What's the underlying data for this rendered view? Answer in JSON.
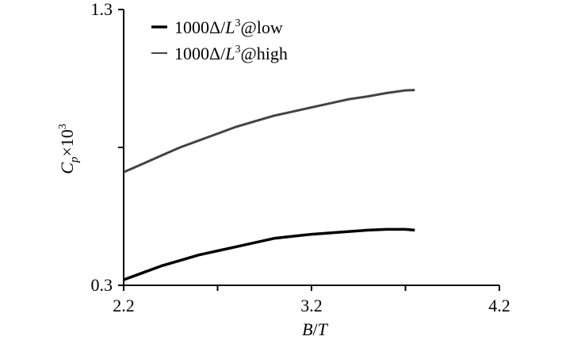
{
  "chart_data": {
    "type": "line",
    "xlabel": {
      "main": "B",
      "slash": "/",
      "italic2": "T"
    },
    "ylabel": {
      "c": "C",
      "sub": "p",
      "times": "×10",
      "sup": "3"
    },
    "xlim": [
      2.2,
      4.2
    ],
    "ylim": [
      0.3,
      1.3
    ],
    "x_tick_labels": [
      "2.2",
      "3.2",
      "4.2"
    ],
    "y_tick_labels": [
      "0.3",
      "1.3"
    ],
    "x_minor_ticks": [
      2.7,
      3.7
    ],
    "y_minor_ticks": [
      0.8
    ],
    "grid": false,
    "legend_position": "top-left",
    "series": [
      {
        "name": "1000Δ/L³@low",
        "legend": {
          "pre": "1000Δ/",
          "italic": "L",
          "sup": "3",
          "post": "@low"
        },
        "color": "#000000",
        "x": [
          2.2,
          2.3,
          2.4,
          2.5,
          2.6,
          2.7,
          2.8,
          2.9,
          3.0,
          3.1,
          3.2,
          3.3,
          3.4,
          3.5,
          3.6,
          3.7,
          3.75
        ],
        "y": [
          0.32,
          0.345,
          0.37,
          0.39,
          0.41,
          0.425,
          0.44,
          0.455,
          0.47,
          0.478,
          0.485,
          0.49,
          0.495,
          0.5,
          0.503,
          0.503,
          0.5
        ]
      },
      {
        "name": "1000Δ/L³@high",
        "legend": {
          "pre": "1000Δ/",
          "italic": "L",
          "sup": "3",
          "post": "@high"
        },
        "color": "#444444",
        "x": [
          2.2,
          2.3,
          2.4,
          2.5,
          2.6,
          2.7,
          2.8,
          2.9,
          3.0,
          3.1,
          3.2,
          3.3,
          3.4,
          3.5,
          3.6,
          3.7,
          3.75
        ],
        "y": [
          0.71,
          0.74,
          0.77,
          0.8,
          0.825,
          0.85,
          0.875,
          0.895,
          0.915,
          0.93,
          0.945,
          0.96,
          0.975,
          0.985,
          0.997,
          1.007,
          1.008
        ]
      }
    ]
  }
}
